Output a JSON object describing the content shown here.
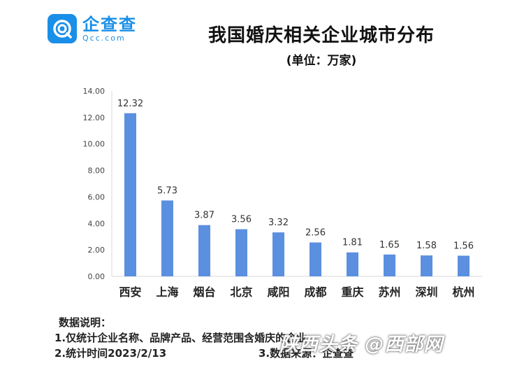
{
  "logo": {
    "name": "企查查",
    "domain": "Qcc.com"
  },
  "title": "我国婚庆相关企业城市分布",
  "unit": "(单位：万家)",
  "chart_data": {
    "type": "bar",
    "title": "我国婚庆相关企业城市分布",
    "subtitle": "(单位：万家)",
    "categories": [
      "西安",
      "上海",
      "烟台",
      "北京",
      "咸阳",
      "成都",
      "重庆",
      "苏州",
      "深圳",
      "杭州"
    ],
    "values": [
      12.32,
      5.73,
      3.87,
      3.56,
      3.32,
      2.56,
      1.81,
      1.65,
      1.58,
      1.56
    ],
    "value_labels": [
      "12.32",
      "5.73",
      "3.87",
      "3.56",
      "3.32",
      "2.56",
      "1.81",
      "1.65",
      "1.58",
      "1.56"
    ],
    "ylim": [
      0,
      14
    ],
    "yticks": [
      "0.00",
      "2.00",
      "4.00",
      "6.00",
      "8.00",
      "10.00",
      "12.00",
      "14.00"
    ],
    "grid": false,
    "bar_color": "#5b8fe0"
  },
  "notes": {
    "heading": "数据说明：",
    "items": [
      "1.仅统计企业名称、品牌产品、经营范围含婚庆的企业",
      "2.统计时间2023/2/13",
      "3.数据来源：企查查"
    ]
  },
  "watermark": "陕西头条 @西部网"
}
